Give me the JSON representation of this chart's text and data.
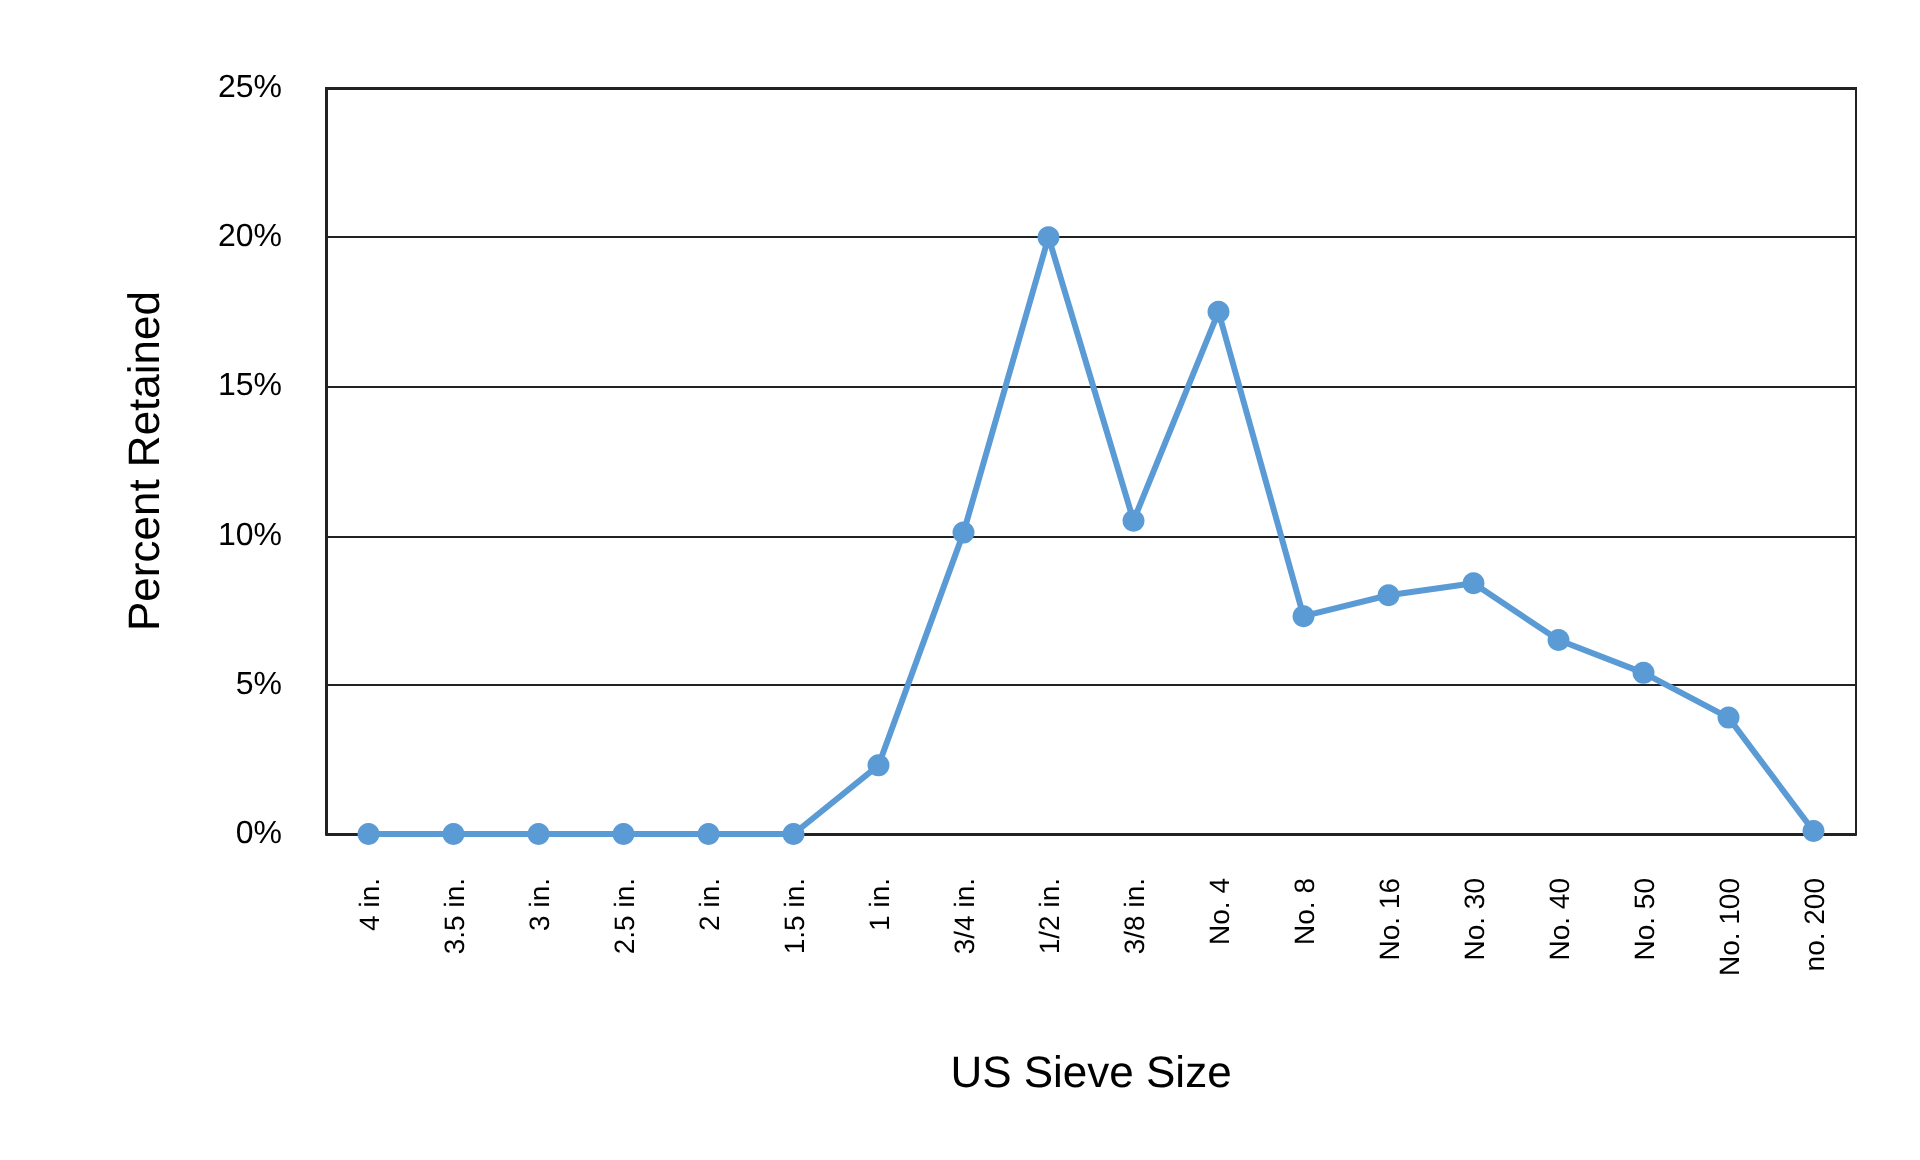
{
  "chart_data": {
    "type": "line",
    "xlabel": "US Sieve Size",
    "ylabel": "Percent Retained",
    "categories": [
      "4 in.",
      "3.5 in.",
      "3 in.",
      "2.5 in.",
      "2 in.",
      "1.5 in.",
      "1 in.",
      "3/4 in.",
      "1/2 in.",
      "3/8 in.",
      "No. 4",
      "No. 8",
      "No. 16",
      "No. 30",
      "No. 40",
      "No. 50",
      "No. 100",
      "no. 200"
    ],
    "series": [
      {
        "color": "#5b9bd5",
        "values": [
          0,
          0,
          0,
          0,
          0,
          0,
          2.3,
          10.1,
          20,
          10.5,
          17.5,
          7.3,
          8.0,
          8.4,
          6.5,
          5.4,
          3.9,
          0.1
        ]
      }
    ],
    "ylim": [
      0,
      25
    ],
    "yticks": [
      {
        "value": 0,
        "label": "0%"
      },
      {
        "value": 5,
        "label": "5%"
      },
      {
        "value": 10,
        "label": "10%"
      },
      {
        "value": 15,
        "label": "15%"
      },
      {
        "value": 20,
        "label": "20%"
      },
      {
        "value": 25,
        "label": "25%"
      }
    ],
    "grid": "y",
    "marker": "circle",
    "line_style": "solid"
  }
}
